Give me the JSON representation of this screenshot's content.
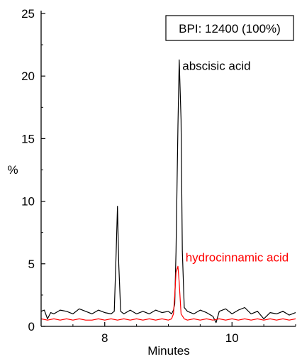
{
  "chart_data": {
    "type": "line",
    "title": "",
    "xlabel": "Minutes",
    "ylabel": "%",
    "xlim": [
      7.0,
      11.0
    ],
    "ylim": [
      0,
      25
    ],
    "x_ticks": [
      8,
      10
    ],
    "x_tick_labels": [
      "8",
      "10"
    ],
    "y_ticks": [
      0,
      5,
      10,
      15,
      20,
      25
    ],
    "y_tick_labels": [
      "0",
      "5",
      "10",
      "15",
      "20",
      "25"
    ],
    "box_label": "BPI: 12400 (100%)",
    "grid": false,
    "series": [
      {
        "color": "#000000",
        "x": [
          7.0,
          7.05,
          7.1,
          7.15,
          7.2,
          7.3,
          7.4,
          7.5,
          7.6,
          7.7,
          7.8,
          7.9,
          8.0,
          8.1,
          8.15,
          8.18,
          8.2,
          8.22,
          8.25,
          8.3,
          8.4,
          8.5,
          8.6,
          8.7,
          8.8,
          8.9,
          9.0,
          9.05,
          9.08,
          9.1,
          9.12,
          9.15,
          9.17,
          9.2,
          9.22,
          9.25,
          9.3,
          9.4,
          9.5,
          9.6,
          9.7,
          9.75,
          9.8,
          9.9,
          10.0,
          10.1,
          10.2,
          10.3,
          10.4,
          10.5,
          10.6,
          10.7,
          10.8,
          10.9,
          11.0
        ],
        "y": [
          1.2,
          1.3,
          0.6,
          1.1,
          1.0,
          1.3,
          1.2,
          1.0,
          1.4,
          1.2,
          1.0,
          1.3,
          1.1,
          1.0,
          1.2,
          6.0,
          9.6,
          5.0,
          1.2,
          1.0,
          1.3,
          1.0,
          1.2,
          1.0,
          1.3,
          1.1,
          1.2,
          1.0,
          1.3,
          1.8,
          6.0,
          16.0,
          21.3,
          16.5,
          6.0,
          1.5,
          1.2,
          1.0,
          1.3,
          1.1,
          0.8,
          0.3,
          1.2,
          1.4,
          1.0,
          1.3,
          1.5,
          1.0,
          1.2,
          0.6,
          1.1,
          1.0,
          1.2,
          0.9,
          1.1
        ]
      },
      {
        "color": "#ff0000",
        "x": [
          7.0,
          7.1,
          7.2,
          7.3,
          7.4,
          7.5,
          7.6,
          7.7,
          7.8,
          7.9,
          8.0,
          8.1,
          8.2,
          8.3,
          8.4,
          8.5,
          8.6,
          8.7,
          8.8,
          8.9,
          9.0,
          9.05,
          9.08,
          9.1,
          9.12,
          9.15,
          9.17,
          9.2,
          9.25,
          9.3,
          9.4,
          9.5,
          9.6,
          9.7,
          9.8,
          9.9,
          10.0,
          10.1,
          10.2,
          10.3,
          10.4,
          10.5,
          10.6,
          10.7,
          10.8,
          10.9,
          11.0
        ],
        "y": [
          0.6,
          0.5,
          0.6,
          0.5,
          0.6,
          0.5,
          0.6,
          0.5,
          0.5,
          0.6,
          0.5,
          0.6,
          0.5,
          0.6,
          0.5,
          0.6,
          0.5,
          0.6,
          0.5,
          0.6,
          0.5,
          0.6,
          1.0,
          2.5,
          4.3,
          4.8,
          3.5,
          1.0,
          0.6,
          0.5,
          0.6,
          0.5,
          0.6,
          0.5,
          0.6,
          0.5,
          0.6,
          0.5,
          0.6,
          0.5,
          0.6,
          0.5,
          0.6,
          0.5,
          0.6,
          0.5,
          0.6
        ]
      }
    ],
    "annotations": [
      {
        "text": "abscisic acid",
        "x": 9.22,
        "y": 20.5,
        "color": "#000000"
      },
      {
        "text": "hydrocinnamic acid",
        "x": 9.27,
        "y": 5.2,
        "color": "#ff0000"
      }
    ]
  }
}
